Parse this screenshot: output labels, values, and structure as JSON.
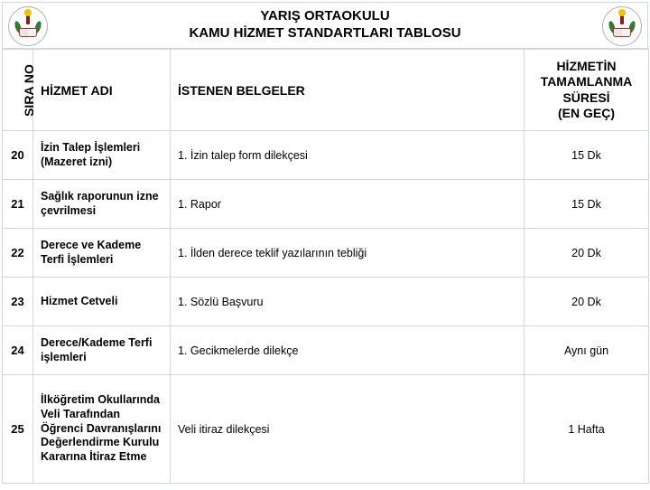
{
  "header": {
    "line1": "YARIŞ ORTAOKULU",
    "line2": "KAMU HİZMET STANDARTLARI TABLOSU"
  },
  "columns": {
    "sira": "SIRA NO",
    "adi": "HİZMET  ADI",
    "doc": "İSTENEN BELGELER",
    "time1": "HİZMETİN",
    "time2": "TAMAMLANMA",
    "time3": "SÜRESİ",
    "time4": "(EN GEÇ)"
  },
  "rows": [
    {
      "no": "20",
      "adi": "İzin Talep İşlemleri (Mazeret izni)",
      "doc": "1. İzin talep form dilekçesi",
      "time": "15 Dk"
    },
    {
      "no": "21",
      "adi": "Sağlık raporunun izne çevrilmesi",
      "doc": "1. Rapor",
      "time": "15 Dk"
    },
    {
      "no": "22",
      "adi": "Derece ve Kademe Terfi İşlemleri",
      "doc": "1. İlden derece teklif yazılarının tebliği",
      "time": "20 Dk"
    },
    {
      "no": "23",
      "adi": "Hizmet Cetveli",
      "doc": "1. Sözlü Başvuru",
      "time": "20 Dk"
    },
    {
      "no": "24",
      "adi": "Derece/Kademe Terfi işlemleri",
      "doc": "1. Gecikmelerde dilekçe",
      "time": "Aynı gün"
    },
    {
      "no": "25",
      "adi": "İlköğretim Okullarında Veli Tarafından Öğrenci Davranışlarını Değerlendirme Kurulu Kararına İtiraz Etme",
      "doc": "Veli itiraz dilekçesi",
      "time": "1 Hafta"
    }
  ]
}
